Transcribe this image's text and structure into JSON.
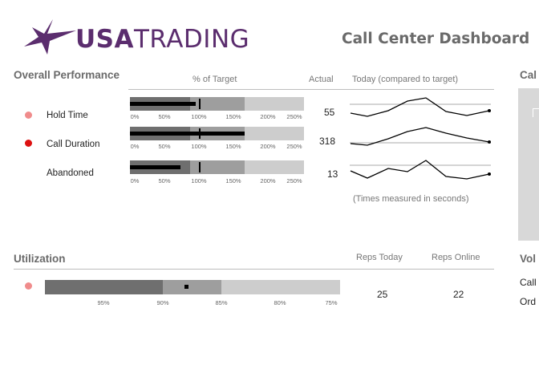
{
  "brand": {
    "logo_text_bold": "USA",
    "logo_text_light": "TRADING",
    "logo_icon": "star-icon",
    "color": "#5b2d6e"
  },
  "dashboard_title": "Call Center Dashboard",
  "overall": {
    "title": "Overall Performance",
    "col_target": "% of Target",
    "col_actual": "Actual",
    "col_today": "Today (compared to target)",
    "note": "(Times measured in seconds)",
    "ticks": [
      "0%",
      "50%",
      "100%",
      "150%",
      "200%",
      "250%"
    ],
    "rows": [
      {
        "label": "Hold Time",
        "status_color": "#f08c8c",
        "pct_of_target": 95,
        "target": 100,
        "actual": "55"
      },
      {
        "label": "Call Duration",
        "status_color": "#dd1111",
        "pct_of_target": 165,
        "target": 100,
        "actual": "318"
      },
      {
        "label": "Abandoned",
        "status_color": "",
        "pct_of_target": 75,
        "target": 100,
        "actual": "13"
      }
    ]
  },
  "utilization": {
    "title": "Utilization",
    "status_color": "#f08c8c",
    "ticks": [
      "95%",
      "90%",
      "85%",
      "80%",
      "75%"
    ],
    "col_reps_today": "Reps Today",
    "col_reps_online": "Reps Online",
    "reps_today": "25",
    "reps_online": "22"
  },
  "right_panel": {
    "top_title": "Cal",
    "bottom_title": "Vol",
    "items": [
      "Call",
      "Ord"
    ]
  }
}
